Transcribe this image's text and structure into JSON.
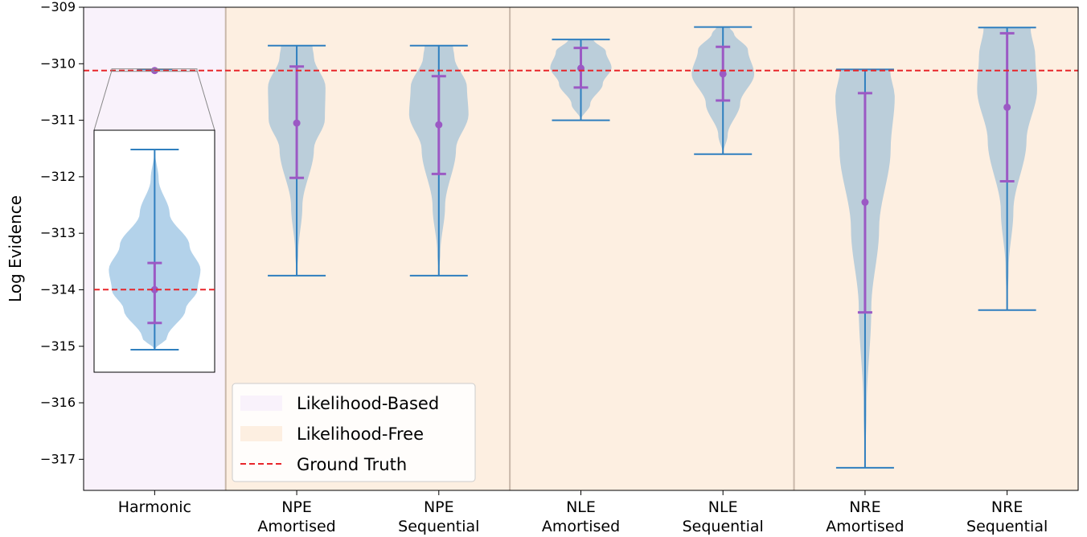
{
  "chart_data": {
    "type": "violin",
    "ylabel": "Log Evidence",
    "xlabel": "",
    "ylim": [
      -317.55,
      -309.0
    ],
    "yticks": [
      -309,
      -310,
      -311,
      -312,
      -313,
      -314,
      -315,
      -316,
      -317
    ],
    "ytick_labels": [
      "−309",
      "−310",
      "−311",
      "−312",
      "−313",
      "−314",
      "−315",
      "−316",
      "−317"
    ],
    "ground_truth": -310.12,
    "categories": [
      {
        "line1": "Harmonic",
        "line2": ""
      },
      {
        "line1": "NPE",
        "line2": "Amortised"
      },
      {
        "line1": "NPE",
        "line2": "Sequential"
      },
      {
        "line1": "NLE",
        "line2": "Amortised"
      },
      {
        "line1": "NLE",
        "line2": "Sequential"
      },
      {
        "line1": "NRE",
        "line2": "Amortised"
      },
      {
        "line1": "NRE",
        "line2": "Sequential"
      }
    ],
    "regions": [
      {
        "label": "Likelihood-Based",
        "start": 0,
        "end": 0,
        "color": "#f9f2fb"
      },
      {
        "label": "Likelihood-Free",
        "start": 1,
        "end": 6,
        "color": "#fdefe1"
      }
    ],
    "violins": [
      {
        "min": -310.13,
        "max": -310.1,
        "mean": -310.12,
        "std_low": -310.125,
        "std_high": -310.115,
        "profile": [
          [
            0,
            0
          ],
          [
            0.3,
            0.5
          ],
          [
            0.6,
            1
          ],
          [
            0.85,
            0.6
          ],
          [
            1,
            0
          ]
        ],
        "halfwidth": 0.5
      },
      {
        "min": -313.75,
        "max": -309.68,
        "mean": -311.05,
        "std_low": -312.02,
        "std_high": -310.05,
        "profile": [
          [
            0,
            0
          ],
          [
            0.1,
            0.05
          ],
          [
            0.3,
            0.18
          ],
          [
            0.55,
            0.55
          ],
          [
            0.68,
            0.9
          ],
          [
            0.82,
            0.92
          ],
          [
            0.95,
            0.55
          ],
          [
            1,
            0.5
          ]
        ],
        "halfwidth": 0.55
      },
      {
        "min": -313.75,
        "max": -309.68,
        "mean": -311.08,
        "std_low": -311.95,
        "std_high": -310.22,
        "profile": [
          [
            0,
            0
          ],
          [
            0.1,
            0.05
          ],
          [
            0.3,
            0.2
          ],
          [
            0.55,
            0.55
          ],
          [
            0.7,
            0.95
          ],
          [
            0.82,
            0.9
          ],
          [
            0.95,
            0.5
          ],
          [
            1,
            0.45
          ]
        ],
        "halfwidth": 0.55
      },
      {
        "min": -311.0,
        "max": -309.57,
        "mean": -310.08,
        "std_low": -310.42,
        "std_high": -309.72,
        "profile": [
          [
            0,
            0
          ],
          [
            0.2,
            0.3
          ],
          [
            0.45,
            0.7
          ],
          [
            0.65,
            0.98
          ],
          [
            0.85,
            0.8
          ],
          [
            1,
            0.4
          ]
        ],
        "halfwidth": 0.55
      },
      {
        "min": -311.6,
        "max": -309.35,
        "mean": -310.18,
        "std_low": -310.65,
        "std_high": -309.7,
        "profile": [
          [
            0,
            0
          ],
          [
            0.15,
            0.15
          ],
          [
            0.4,
            0.55
          ],
          [
            0.63,
            1
          ],
          [
            0.82,
            0.8
          ],
          [
            0.95,
            0.35
          ],
          [
            1,
            0.2
          ]
        ],
        "halfwidth": 0.55
      },
      {
        "min": -317.15,
        "max": -310.1,
        "mean": -312.45,
        "std_low": -314.4,
        "std_high": -310.52,
        "profile": [
          [
            0,
            0
          ],
          [
            0.15,
            0.05
          ],
          [
            0.4,
            0.2
          ],
          [
            0.6,
            0.45
          ],
          [
            0.8,
            0.82
          ],
          [
            0.93,
            0.95
          ],
          [
            1,
            0.8
          ]
        ],
        "halfwidth": 0.55
      },
      {
        "min": -314.36,
        "max": -309.36,
        "mean": -310.77,
        "std_low": -312.08,
        "std_high": -309.46,
        "profile": [
          [
            0,
            0
          ],
          [
            0.15,
            0.05
          ],
          [
            0.35,
            0.2
          ],
          [
            0.6,
            0.62
          ],
          [
            0.78,
            0.96
          ],
          [
            0.9,
            0.9
          ],
          [
            1,
            0.75
          ]
        ],
        "halfwidth": 0.55
      }
    ],
    "inset": {
      "ylim": [
        -310.135,
        -310.095
      ],
      "min": -310.13,
      "max": -310.1,
      "mean": -310.121,
      "std_low": -310.126,
      "std_high": -310.117,
      "ground_truth": -310.121
    },
    "legend": {
      "placement": "lower-left",
      "entries": [
        {
          "label": "Likelihood-Based",
          "kind": "patch",
          "color": "#f9f2fb"
        },
        {
          "label": "Likelihood-Free",
          "kind": "patch",
          "color": "#fdefe1"
        },
        {
          "label": "Ground Truth",
          "kind": "dashed-line",
          "color": "#e8262b"
        }
      ]
    },
    "colors": {
      "violin_fill": "#afc8d8",
      "inset_violin_fill": "#b3d2ea",
      "whisker": "#2f7fbf",
      "mean_std": "#9b59c4",
      "ground_truth": "#e8262b",
      "separator": "#c9b8aa"
    }
  }
}
